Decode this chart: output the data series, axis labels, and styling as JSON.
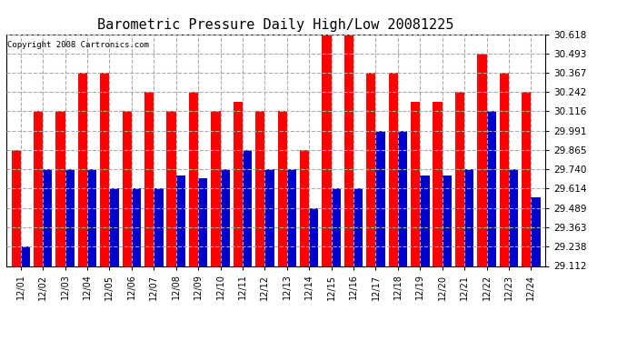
{
  "title": "Barometric Pressure Daily High/Low 20081225",
  "copyright_text": "Copyright 2008 Cartronics.com",
  "dates": [
    "12/01",
    "12/02",
    "12/03",
    "12/04",
    "12/05",
    "12/06",
    "12/07",
    "12/08",
    "12/09",
    "12/10",
    "12/11",
    "12/12",
    "12/13",
    "12/14",
    "12/15",
    "12/16",
    "12/17",
    "12/18",
    "12/19",
    "12/20",
    "12/21",
    "12/22",
    "12/23",
    "12/24"
  ],
  "highs": [
    29.865,
    30.116,
    30.116,
    30.367,
    30.367,
    30.116,
    30.242,
    30.116,
    30.242,
    30.116,
    30.18,
    30.116,
    30.116,
    29.865,
    30.618,
    30.618,
    30.367,
    30.367,
    30.18,
    30.18,
    30.242,
    30.493,
    30.367,
    30.242
  ],
  "lows": [
    29.238,
    29.74,
    29.74,
    29.74,
    29.614,
    29.614,
    29.614,
    29.7,
    29.68,
    29.74,
    29.865,
    29.74,
    29.74,
    29.489,
    29.614,
    29.614,
    29.991,
    29.991,
    29.7,
    29.7,
    29.74,
    30.116,
    29.74,
    29.56
  ],
  "ylim": [
    29.112,
    30.618
  ],
  "yticks": [
    29.112,
    29.238,
    29.363,
    29.489,
    29.614,
    29.74,
    29.865,
    29.991,
    30.116,
    30.242,
    30.367,
    30.493,
    30.618
  ],
  "high_color": "#ff0000",
  "low_color": "#0000cc",
  "bg_color": "#ffffff",
  "plot_bg_color": "#ffffff",
  "title_fontsize": 11,
  "copyright_fontsize": 6.5
}
